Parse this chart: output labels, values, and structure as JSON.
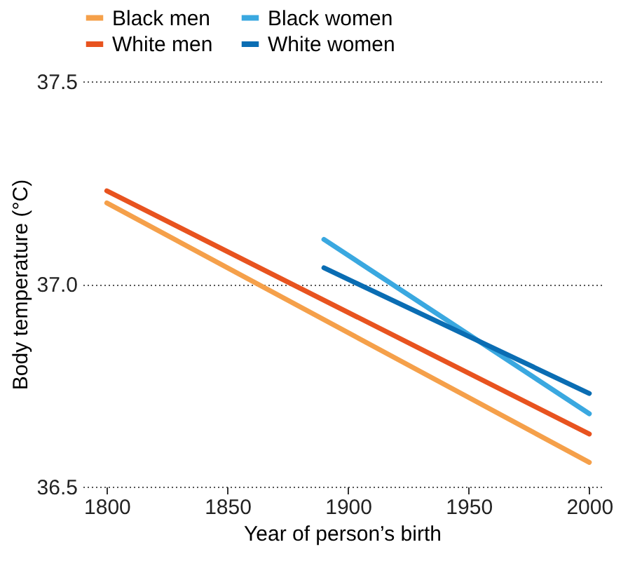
{
  "chart_data": {
    "type": "line",
    "xlabel": "Year of person’s birth",
    "ylabel": "Body temperature (°C)",
    "xlim": [
      1790,
      2005
    ],
    "xticks": [
      1800,
      1850,
      1900,
      1950,
      2000
    ],
    "ylim": [
      36.5,
      37.5
    ],
    "yticks": [
      {
        "value": 36.5,
        "label": "36.5"
      },
      {
        "value": 37.0,
        "label": "37.0"
      },
      {
        "value": 37.5,
        "label": "37.5"
      }
    ],
    "grid": "y",
    "legend": "top",
    "marker": "none",
    "line_style": "solid",
    "series": [
      {
        "name": "Black men",
        "color": "#f5a04a",
        "x": [
          1800,
          2000
        ],
        "values": [
          37.2,
          36.56
        ]
      },
      {
        "name": "Black women",
        "color": "#3aa8e0",
        "x": [
          1890,
          2000
        ],
        "values": [
          37.11,
          36.68
        ]
      },
      {
        "name": "White men",
        "color": "#e8531f",
        "x": [
          1800,
          2000
        ],
        "values": [
          37.23,
          36.63
        ]
      },
      {
        "name": "White women",
        "color": "#0a6db3",
        "x": [
          1890,
          2000
        ],
        "values": [
          37.04,
          36.73
        ]
      }
    ]
  }
}
